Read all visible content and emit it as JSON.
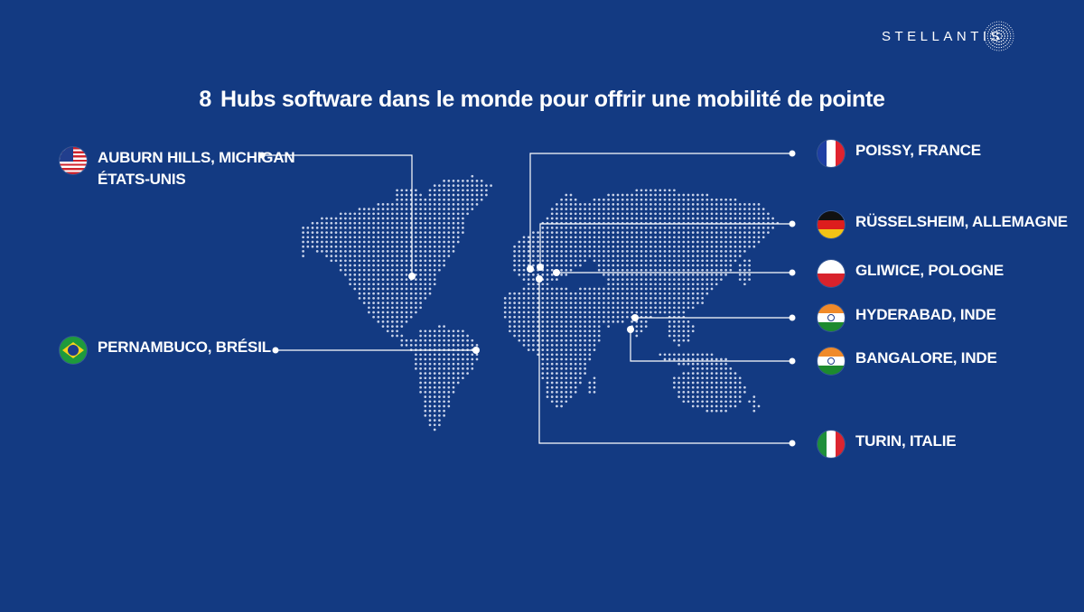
{
  "brand": {
    "name": "STELLANTIS",
    "logo_icon": "stellantis-dot-sphere-icon"
  },
  "title": {
    "number": "8",
    "text": "Hubs software dans le monde pour offrir une mobilité de pointe"
  },
  "colors": {
    "background": "#133a82",
    "text": "#ffffff",
    "map_dots": "#c9d3ea",
    "connector": "#ffffff"
  },
  "hubs": [
    {
      "id": "auburn-hills",
      "line1": "AUBURN HILLS, MICHIGAN",
      "line2": "ÉTATS-UNIS",
      "flag": "us-flag-icon"
    },
    {
      "id": "pernambuco",
      "line1": "PERNAMBUCO, BRÉSIL",
      "flag": "brazil-flag-icon"
    },
    {
      "id": "poissy",
      "line1": "POISSY, FRANCE",
      "flag": "france-flag-icon"
    },
    {
      "id": "russelsheim",
      "line1": "RÜSSELSHEIM, ALLEMAGNE",
      "flag": "germany-flag-icon"
    },
    {
      "id": "gliwice",
      "line1": "GLIWICE, POLOGNE",
      "flag": "poland-flag-icon"
    },
    {
      "id": "hyderabad",
      "line1": "HYDERABAD, INDE",
      "flag": "india-flag-icon"
    },
    {
      "id": "bangalore",
      "line1": "BANGALORE, INDE",
      "flag": "india-flag-icon"
    },
    {
      "id": "turin",
      "line1": "TURIN, ITALIE",
      "flag": "italy-flag-icon"
    }
  ],
  "map": {
    "style": "dotted-world-map"
  }
}
